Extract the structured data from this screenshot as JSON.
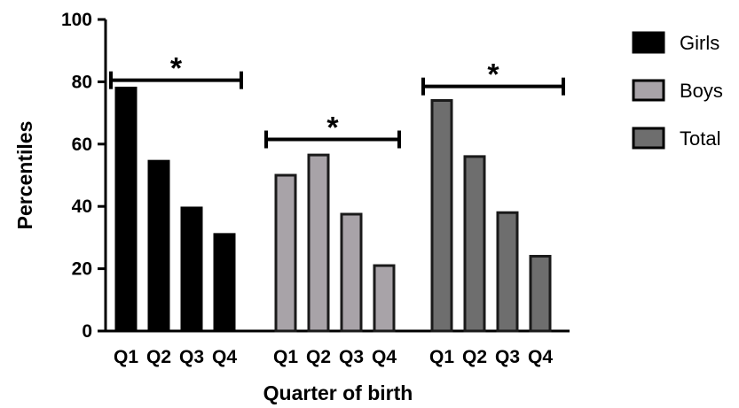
{
  "chart_data": {
    "type": "bar",
    "xlabel": "Quarter of birth",
    "ylabel": "Percentiles",
    "ylim": [
      0,
      100
    ],
    "yticks": [
      "0",
      "20",
      "40",
      "60",
      "80",
      "100"
    ],
    "grid": false,
    "legend_position": "right",
    "categories": [
      "Q1",
      "Q2",
      "Q3",
      "Q4"
    ],
    "series": [
      {
        "name": "Girls",
        "values": [
          78,
          54.5,
          39.5,
          31
        ],
        "color": "#000000"
      },
      {
        "name": "Boys",
        "values": [
          50,
          56.5,
          37.5,
          21
        ],
        "color": "#a8a3a8"
      },
      {
        "name": "Total",
        "values": [
          74,
          56,
          38,
          24
        ],
        "color": "#6e6e6e"
      }
    ],
    "significance": [
      {
        "group": "Girls",
        "marker": "*",
        "level": 80.5
      },
      {
        "group": "Boys",
        "marker": "*",
        "level": 61.5
      },
      {
        "group": "Total",
        "marker": "*",
        "level": 78.5
      }
    ]
  }
}
